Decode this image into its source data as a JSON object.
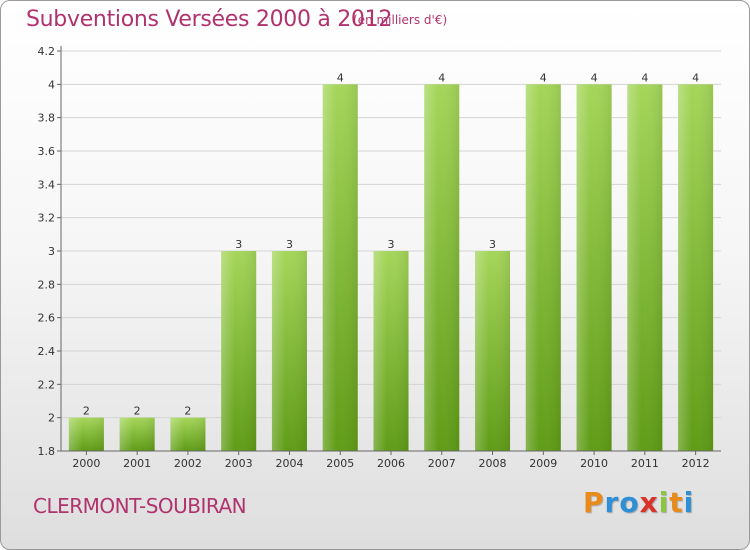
{
  "header": {
    "title": "Subventions Versées 2000 à 2012",
    "unit": "(en milliers d'€)"
  },
  "footer": {
    "commune": "CLERMONT-SOUBIRAN",
    "brand_letters": [
      "P",
      "r",
      "o",
      "x",
      "i",
      "t",
      "i"
    ],
    "brand_colors": [
      "#e88b1a",
      "#2f8fd6",
      "#2f8fd6",
      "#d9322b",
      "#8cc63f",
      "#e88b1a",
      "#2f8fd6"
    ]
  },
  "colors": {
    "bar_top": "#a5d65a",
    "bar_bottom": "#5f9c16",
    "grid": "#d4d4d4",
    "axis": "#666666",
    "title": "#b0336d"
  },
  "chart_data": {
    "type": "bar",
    "title": "Subventions Versées 2000 à 2012",
    "xlabel": "",
    "ylabel": "",
    "categories": [
      "2000",
      "2001",
      "2002",
      "2003",
      "2004",
      "2005",
      "2006",
      "2007",
      "2008",
      "2009",
      "2010",
      "2011",
      "2012"
    ],
    "values": [
      2,
      2,
      2,
      3,
      3,
      4,
      3,
      4,
      3,
      4,
      4,
      4,
      4
    ],
    "data_labels": [
      "2",
      "2",
      "2",
      "3",
      "3",
      "4",
      "3",
      "4",
      "3",
      "4",
      "4",
      "4",
      "4"
    ],
    "ylim": [
      1.8,
      4.2
    ],
    "yticks": [
      1.8,
      2,
      2.2,
      2.4,
      2.6,
      2.8,
      3,
      3.2,
      3.4,
      3.6,
      3.8,
      4,
      4.2
    ],
    "ytick_labels": [
      "1.8",
      "2",
      "2.2",
      "2.4",
      "2.6",
      "2.8",
      "3",
      "3.2",
      "3.4",
      "3.6",
      "3.8",
      "4",
      "4.2"
    ],
    "grid": true,
    "legend": "none"
  }
}
